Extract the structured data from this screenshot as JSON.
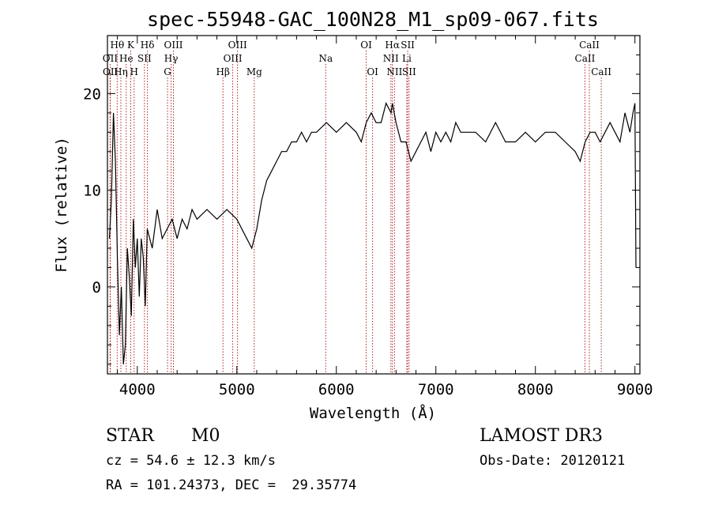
{
  "chart_data": {
    "type": "line",
    "title": "spec-55948-GAC_100N28_M1_sp09-067.fits",
    "xlabel": "Wavelength (Å)",
    "ylabel": "Flux (relative)",
    "xlim": [
      3700,
      9050
    ],
    "ylim": [
      -9,
      26
    ],
    "xticks": [
      4000,
      5000,
      6000,
      7000,
      8000,
      9000
    ],
    "yticks": [
      0,
      10,
      20
    ],
    "xtick_labels": [
      "4000",
      "5000",
      "6000",
      "7000",
      "8000",
      "9000"
    ],
    "ytick_labels": [
      "0",
      "10",
      "20"
    ],
    "series": [
      {
        "name": "spectrum",
        "x": [
          3720,
          3740,
          3760,
          3780,
          3800,
          3820,
          3840,
          3860,
          3880,
          3900,
          3920,
          3940,
          3960,
          3980,
          4000,
          4020,
          4040,
          4060,
          4080,
          4100,
          4150,
          4200,
          4250,
          4300,
          4350,
          4400,
          4450,
          4500,
          4550,
          4600,
          4700,
          4800,
          4900,
          5000,
          5100,
          5150,
          5200,
          5250,
          5300,
          5350,
          5400,
          5450,
          5500,
          5550,
          5600,
          5650,
          5700,
          5750,
          5800,
          5900,
          6000,
          6100,
          6200,
          6250,
          6300,
          6350,
          6400,
          6450,
          6500,
          6550,
          6563,
          6600,
          6650,
          6700,
          6750,
          6800,
          6850,
          6900,
          6950,
          7000,
          7050,
          7100,
          7150,
          7200,
          7250,
          7300,
          7400,
          7500,
          7600,
          7700,
          7800,
          7900,
          8000,
          8100,
          8200,
          8300,
          8400,
          8450,
          8500,
          8550,
          8600,
          8650,
          8700,
          8750,
          8800,
          8850,
          8900,
          8950,
          8980,
          9000,
          9010
        ],
        "y": [
          5,
          9,
          18,
          13,
          3,
          -5,
          0,
          -8,
          -6,
          4,
          1,
          -3,
          7,
          2,
          5,
          -1,
          5,
          3,
          -2,
          6,
          4,
          8,
          5,
          6,
          7,
          5,
          7,
          6,
          8,
          7,
          8,
          7,
          8,
          7,
          5,
          4,
          6,
          9,
          11,
          12,
          13,
          14,
          14,
          15,
          15,
          16,
          15,
          16,
          16,
          17,
          16,
          17,
          16,
          15,
          17,
          18,
          17,
          17,
          19,
          18,
          19,
          17,
          15,
          15,
          13,
          14,
          15,
          16,
          14,
          16,
          15,
          16,
          15,
          17,
          16,
          16,
          16,
          15,
          17,
          15,
          15,
          16,
          15,
          16,
          16,
          15,
          14,
          13,
          15,
          16,
          16,
          15,
          16,
          17,
          16,
          15,
          18,
          16,
          18,
          19,
          2
        ]
      }
    ],
    "lines": [
      {
        "name": "Hθ",
        "x": 3798,
        "row": 1
      },
      {
        "name": "OII",
        "x": 3727,
        "row": 2
      },
      {
        "name": "OII",
        "x": 3729,
        "row": 3
      },
      {
        "name": "K",
        "x": 3934,
        "row": 1
      },
      {
        "name": "He",
        "x": 3889,
        "row": 2
      },
      {
        "name": "Hη",
        "x": 3835,
        "row": 3
      },
      {
        "name": "Hδ",
        "x": 4102,
        "row": 1
      },
      {
        "name": "SII",
        "x": 4072,
        "row": 2
      },
      {
        "name": "H",
        "x": 3968,
        "row": 3
      },
      {
        "name": "OIII",
        "x": 4363,
        "row": 1
      },
      {
        "name": "Hγ",
        "x": 4340,
        "row": 2
      },
      {
        "name": "G",
        "x": 4304,
        "row": 3
      },
      {
        "name": "OIII",
        "x": 5007,
        "row": 1
      },
      {
        "name": "OIII",
        "x": 4959,
        "row": 2
      },
      {
        "name": "Hβ",
        "x": 4861,
        "row": 3
      },
      {
        "name": "Mg",
        "x": 5175,
        "row": 3
      },
      {
        "name": "Na",
        "x": 5893,
        "row": 2
      },
      {
        "name": "OI",
        "x": 6300,
        "row": 1
      },
      {
        "name": "OI",
        "x": 6364,
        "row": 3
      },
      {
        "name": "Hα",
        "x": 6563,
        "row": 1
      },
      {
        "name": "NII",
        "x": 6548,
        "row": 2
      },
      {
        "name": "NII",
        "x": 6584,
        "row": 3
      },
      {
        "name": "SII",
        "x": 6717,
        "row": 1
      },
      {
        "name": "Li",
        "x": 6708,
        "row": 2
      },
      {
        "name": "SII",
        "x": 6731,
        "row": 3
      },
      {
        "name": "CaII",
        "x": 8542,
        "row": 1
      },
      {
        "name": "CaII",
        "x": 8498,
        "row": 2
      },
      {
        "name": "CaII",
        "x": 8662,
        "row": 3
      }
    ]
  },
  "info": {
    "object_class": "STAR",
    "subclass": "M0",
    "survey": "LAMOST DR3",
    "cz": "cz = 54.6 ± 12.3 km/s",
    "obs_date": "Obs-Date: 20120121",
    "coords": "RA = 101.24373, DEC =  29.35774"
  },
  "colors": {
    "line_marker": "#b22222",
    "spectrum": "#000000"
  }
}
